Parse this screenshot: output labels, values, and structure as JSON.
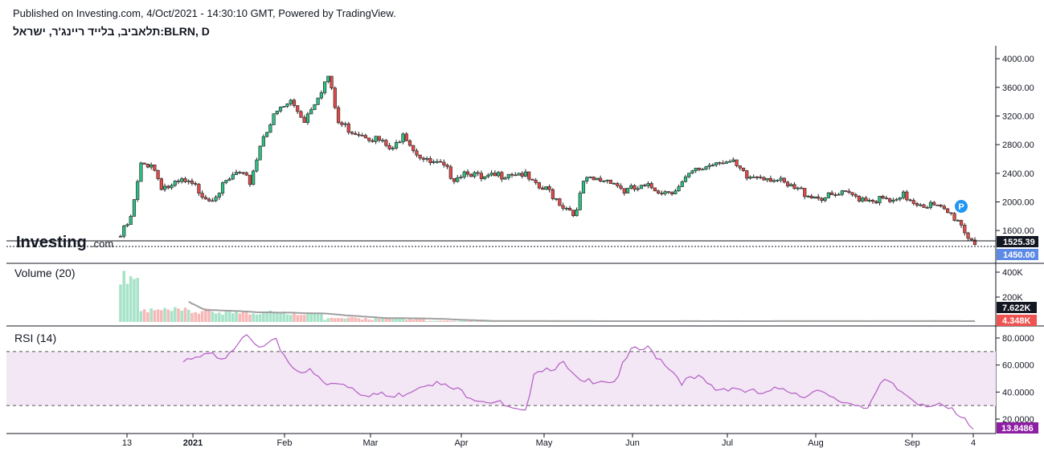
{
  "header": {
    "published": "Published on Investing.com, 4/Oct/2021 - 14:30:10 GMT, Powered by TradingView.",
    "symbol": "תלאביב, בלייד ריינג'ר, ישראל:BLRN, D"
  },
  "brand": {
    "name": "Investing",
    "suffix": ".com"
  },
  "colors": {
    "up": "#26a69a",
    "up_fill": "#2ebd85",
    "down": "#ef5350",
    "down_fill": "#e04c4a",
    "vol_up": "#a7e3c9",
    "vol_down": "#f7b9b8",
    "rsi": "#b35ec4",
    "rsi_band": "#f3e6f5",
    "vol_ma": "#a0a0a0",
    "axis": "#131722",
    "rsi_tag": "#8e1ea3",
    "price_tag": "#5d8ae6"
  },
  "chart_data": {
    "type": "candlestick",
    "x_ticks": [
      "13",
      "2021",
      "Feb",
      "Mar",
      "Apr",
      "May",
      "Jun",
      "Jul",
      "Aug",
      "Sep",
      "4"
    ],
    "price_pane": {
      "y_ticks": [
        "4000.00",
        "3600.00",
        "3200.00",
        "2800.00",
        "2400.00",
        "2000.00",
        "1600.00"
      ],
      "y_range": [
        1400,
        4080
      ],
      "last_close_label": "1525.39",
      "last_price_label": "1450.00",
      "marker": "P",
      "candles_keyframes": [
        [
          0,
          1520
        ],
        [
          3,
          1760
        ],
        [
          6,
          2500
        ],
        [
          9,
          2550
        ],
        [
          12,
          2230
        ],
        [
          15,
          2200
        ],
        [
          18,
          2280
        ],
        [
          22,
          2200
        ],
        [
          26,
          2050
        ],
        [
          30,
          2200
        ],
        [
          34,
          2400
        ],
        [
          38,
          2280
        ],
        [
          42,
          2950
        ],
        [
          46,
          3250
        ],
        [
          50,
          3400
        ],
        [
          54,
          3150
        ],
        [
          58,
          3500
        ],
        [
          61,
          3750
        ],
        [
          64,
          3100
        ],
        [
          68,
          3000
        ],
        [
          72,
          2950
        ],
        [
          76,
          2850
        ],
        [
          80,
          2700
        ],
        [
          83,
          3000
        ],
        [
          86,
          2750
        ],
        [
          90,
          2550
        ],
        [
          94,
          2500
        ],
        [
          98,
          2350
        ],
        [
          102,
          2450
        ],
        [
          106,
          2300
        ],
        [
          110,
          2350
        ],
        [
          114,
          2420
        ],
        [
          118,
          2400
        ],
        [
          122,
          2200
        ],
        [
          126,
          2150
        ],
        [
          130,
          1950
        ],
        [
          134,
          1850
        ],
        [
          136,
          2280
        ],
        [
          140,
          2300
        ],
        [
          144,
          2320
        ],
        [
          148,
          2150
        ],
        [
          152,
          2180
        ],
        [
          156,
          2200
        ],
        [
          160,
          2150
        ],
        [
          164,
          2200
        ],
        [
          168,
          2400
        ],
        [
          172,
          2500
        ],
        [
          176,
          2600
        ],
        [
          180,
          2520
        ],
        [
          184,
          2330
        ],
        [
          188,
          2380
        ],
        [
          192,
          2330
        ],
        [
          196,
          2200
        ],
        [
          200,
          2150
        ],
        [
          204,
          2080
        ],
        [
          208,
          2060
        ],
        [
          212,
          2100
        ],
        [
          216,
          2080
        ],
        [
          220,
          2050
        ],
        [
          224,
          2020
        ],
        [
          228,
          1980
        ],
        [
          230,
          2080
        ],
        [
          234,
          2000
        ],
        [
          238,
          1950
        ],
        [
          242,
          1870
        ],
        [
          246,
          1760
        ],
        [
          249,
          1520
        ],
        [
          251,
          1450
        ]
      ]
    },
    "volume_pane": {
      "label": "Volume (20)",
      "y_ticks": [
        "400K",
        "200K"
      ],
      "last_ma_label": "7.622K",
      "last_volume_label": "4.348K"
    },
    "rsi_pane": {
      "label": "RSI (14)",
      "y_ticks": [
        "80.0000",
        "60.0000",
        "40.0000",
        "20.0000"
      ],
      "y_range": [
        10,
        90
      ],
      "band": [
        30,
        70
      ],
      "last_label": "13.8486",
      "keyframes": [
        [
          14,
          61
        ],
        [
          20,
          67
        ],
        [
          24,
          67
        ],
        [
          28,
          82
        ],
        [
          32,
          72
        ],
        [
          36,
          77
        ],
        [
          40,
          58
        ],
        [
          44,
          55
        ],
        [
          48,
          45
        ],
        [
          52,
          47
        ],
        [
          56,
          40
        ],
        [
          60,
          38
        ],
        [
          64,
          36
        ],
        [
          68,
          42
        ],
        [
          72,
          48
        ],
        [
          76,
          44
        ],
        [
          80,
          40
        ],
        [
          84,
          35
        ],
        [
          88,
          33
        ],
        [
          92,
          26
        ],
        [
          95,
          24
        ],
        [
          97,
          56
        ],
        [
          100,
          58
        ],
        [
          104,
          60
        ],
        [
          108,
          46
        ],
        [
          112,
          50
        ],
        [
          116,
          48
        ],
        [
          120,
          70
        ],
        [
          124,
          72
        ],
        [
          128,
          62
        ],
        [
          132,
          48
        ],
        [
          136,
          50
        ],
        [
          140,
          42
        ],
        [
          144,
          44
        ],
        [
          148,
          40
        ],
        [
          152,
          38
        ],
        [
          156,
          44
        ],
        [
          160,
          38
        ],
        [
          164,
          40
        ],
        [
          168,
          34
        ],
        [
          172,
          32
        ],
        [
          176,
          30
        ],
        [
          180,
          48
        ],
        [
          184,
          40
        ],
        [
          188,
          33
        ],
        [
          192,
          30
        ],
        [
          196,
          26
        ],
        [
          198,
          20
        ],
        [
          200,
          18
        ],
        [
          201,
          14
        ]
      ]
    }
  }
}
